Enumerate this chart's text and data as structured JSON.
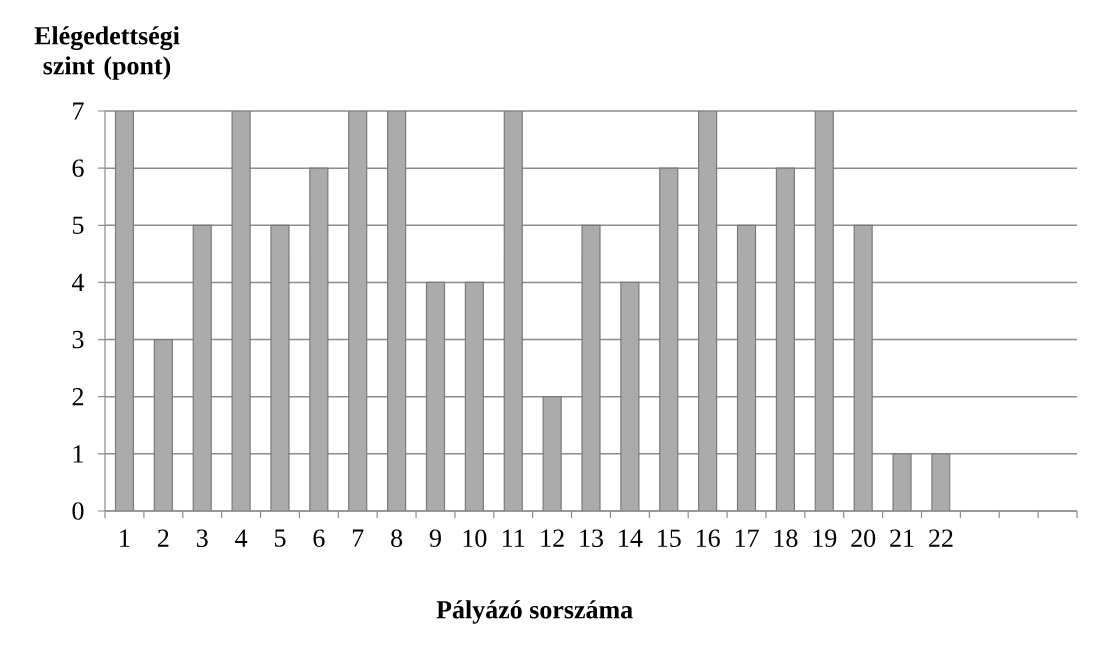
{
  "chart_data": {
    "type": "bar",
    "xlabel": "Pályázó sorszáma",
    "ylabel": "Elégedettségi szint (pont)",
    "categories": [
      "1",
      "2",
      "3",
      "4",
      "5",
      "6",
      "7",
      "8",
      "9",
      "10",
      "11",
      "12",
      "13",
      "14",
      "15",
      "16",
      "17",
      "18",
      "19",
      "20",
      "21",
      "22",
      null,
      null,
      null
    ],
    "values": [
      7,
      3,
      5,
      7,
      5,
      6,
      7,
      7,
      4,
      4,
      7,
      2,
      5,
      4,
      6,
      7,
      5,
      6,
      7,
      5,
      1,
      1,
      null,
      null,
      null
    ],
    "color": "#ababab",
    "ylim": [
      0,
      7
    ],
    "yticks": [
      0,
      1,
      2,
      3,
      4,
      5,
      6,
      7
    ],
    "grid": "y"
  }
}
